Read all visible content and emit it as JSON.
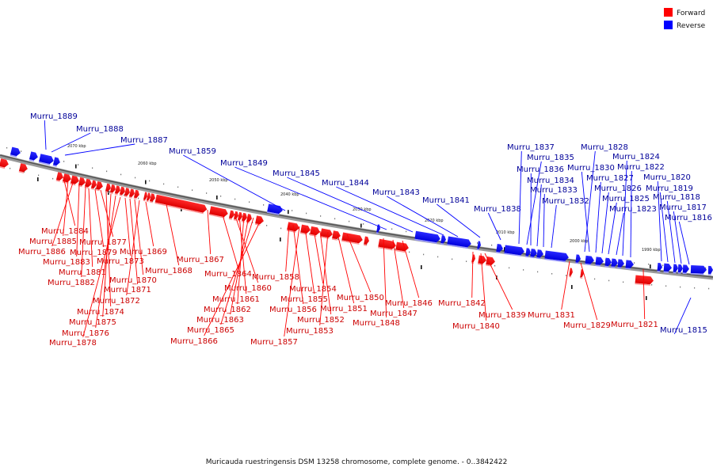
{
  "legend": [
    {
      "label": "Forward",
      "color": "#ff0000"
    },
    {
      "label": "Reverse",
      "color": "#0000ff"
    }
  ],
  "caption": "Muricauda ruestringensis DSM 13258 chromosome, complete genome. - 0..3842422",
  "ticks": [
    "2070 kbp",
    "2060 kbp",
    "2050 kbp",
    "2040 kbp",
    "2030 kbp",
    "2020 kbp",
    "2010 kbp",
    "2000 kbp",
    "1990 kbp"
  ],
  "forward_genes": [
    "Murru_1884",
    "Murru_1885",
    "Murru_1886",
    "Murru_1883",
    "Murru_1882",
    "Murru_1881",
    "Murru_1879",
    "Murru_1877",
    "Murru_1874",
    "Murru_1875",
    "Murru_1876",
    "Murru_1878",
    "Murru_1873",
    "Murru_1871",
    "Murru_1870",
    "Murru_1872",
    "Murru_1869",
    "Murru_1868",
    "Murru_1867",
    "Murru_1864",
    "Murru_1860",
    "Murru_1861",
    "Murru_1862",
    "Murru_1863",
    "Murru_1865",
    "Murru_1866",
    "Murru_1858",
    "Murru_1856",
    "Murru_1857",
    "Murru_1855",
    "Murru_1854",
    "Murru_1852",
    "Murru_1853",
    "Murru_1851",
    "Murru_1850",
    "Murru_1848",
    "Murru_1847",
    "Murru_1846",
    "Murru_1842",
    "Murru_1840",
    "Murru_1839",
    "Murru_1831",
    "Murru_1829",
    "Murru_1821"
  ],
  "reverse_genes": [
    "Murru_1889",
    "Murru_1888",
    "Murru_1887",
    "Murru_1859",
    "Murru_1849",
    "Murru_1845",
    "Murru_1844",
    "Murru_1843",
    "Murru_1841",
    "Murru_1838",
    "Murru_1837",
    "Murru_1835",
    "Murru_1836",
    "Murru_1834",
    "Murru_1833",
    "Murru_1832",
    "Murru_1828",
    "Murru_1830",
    "Murru_1827",
    "Murru_1826",
    "Murru_1825",
    "Murru_1823",
    "Murru_1824",
    "Murru_1822",
    "Murru_1820",
    "Murru_1819",
    "Murru_1818",
    "Murru_1817",
    "Murru_1816",
    "Murru_1815"
  ]
}
